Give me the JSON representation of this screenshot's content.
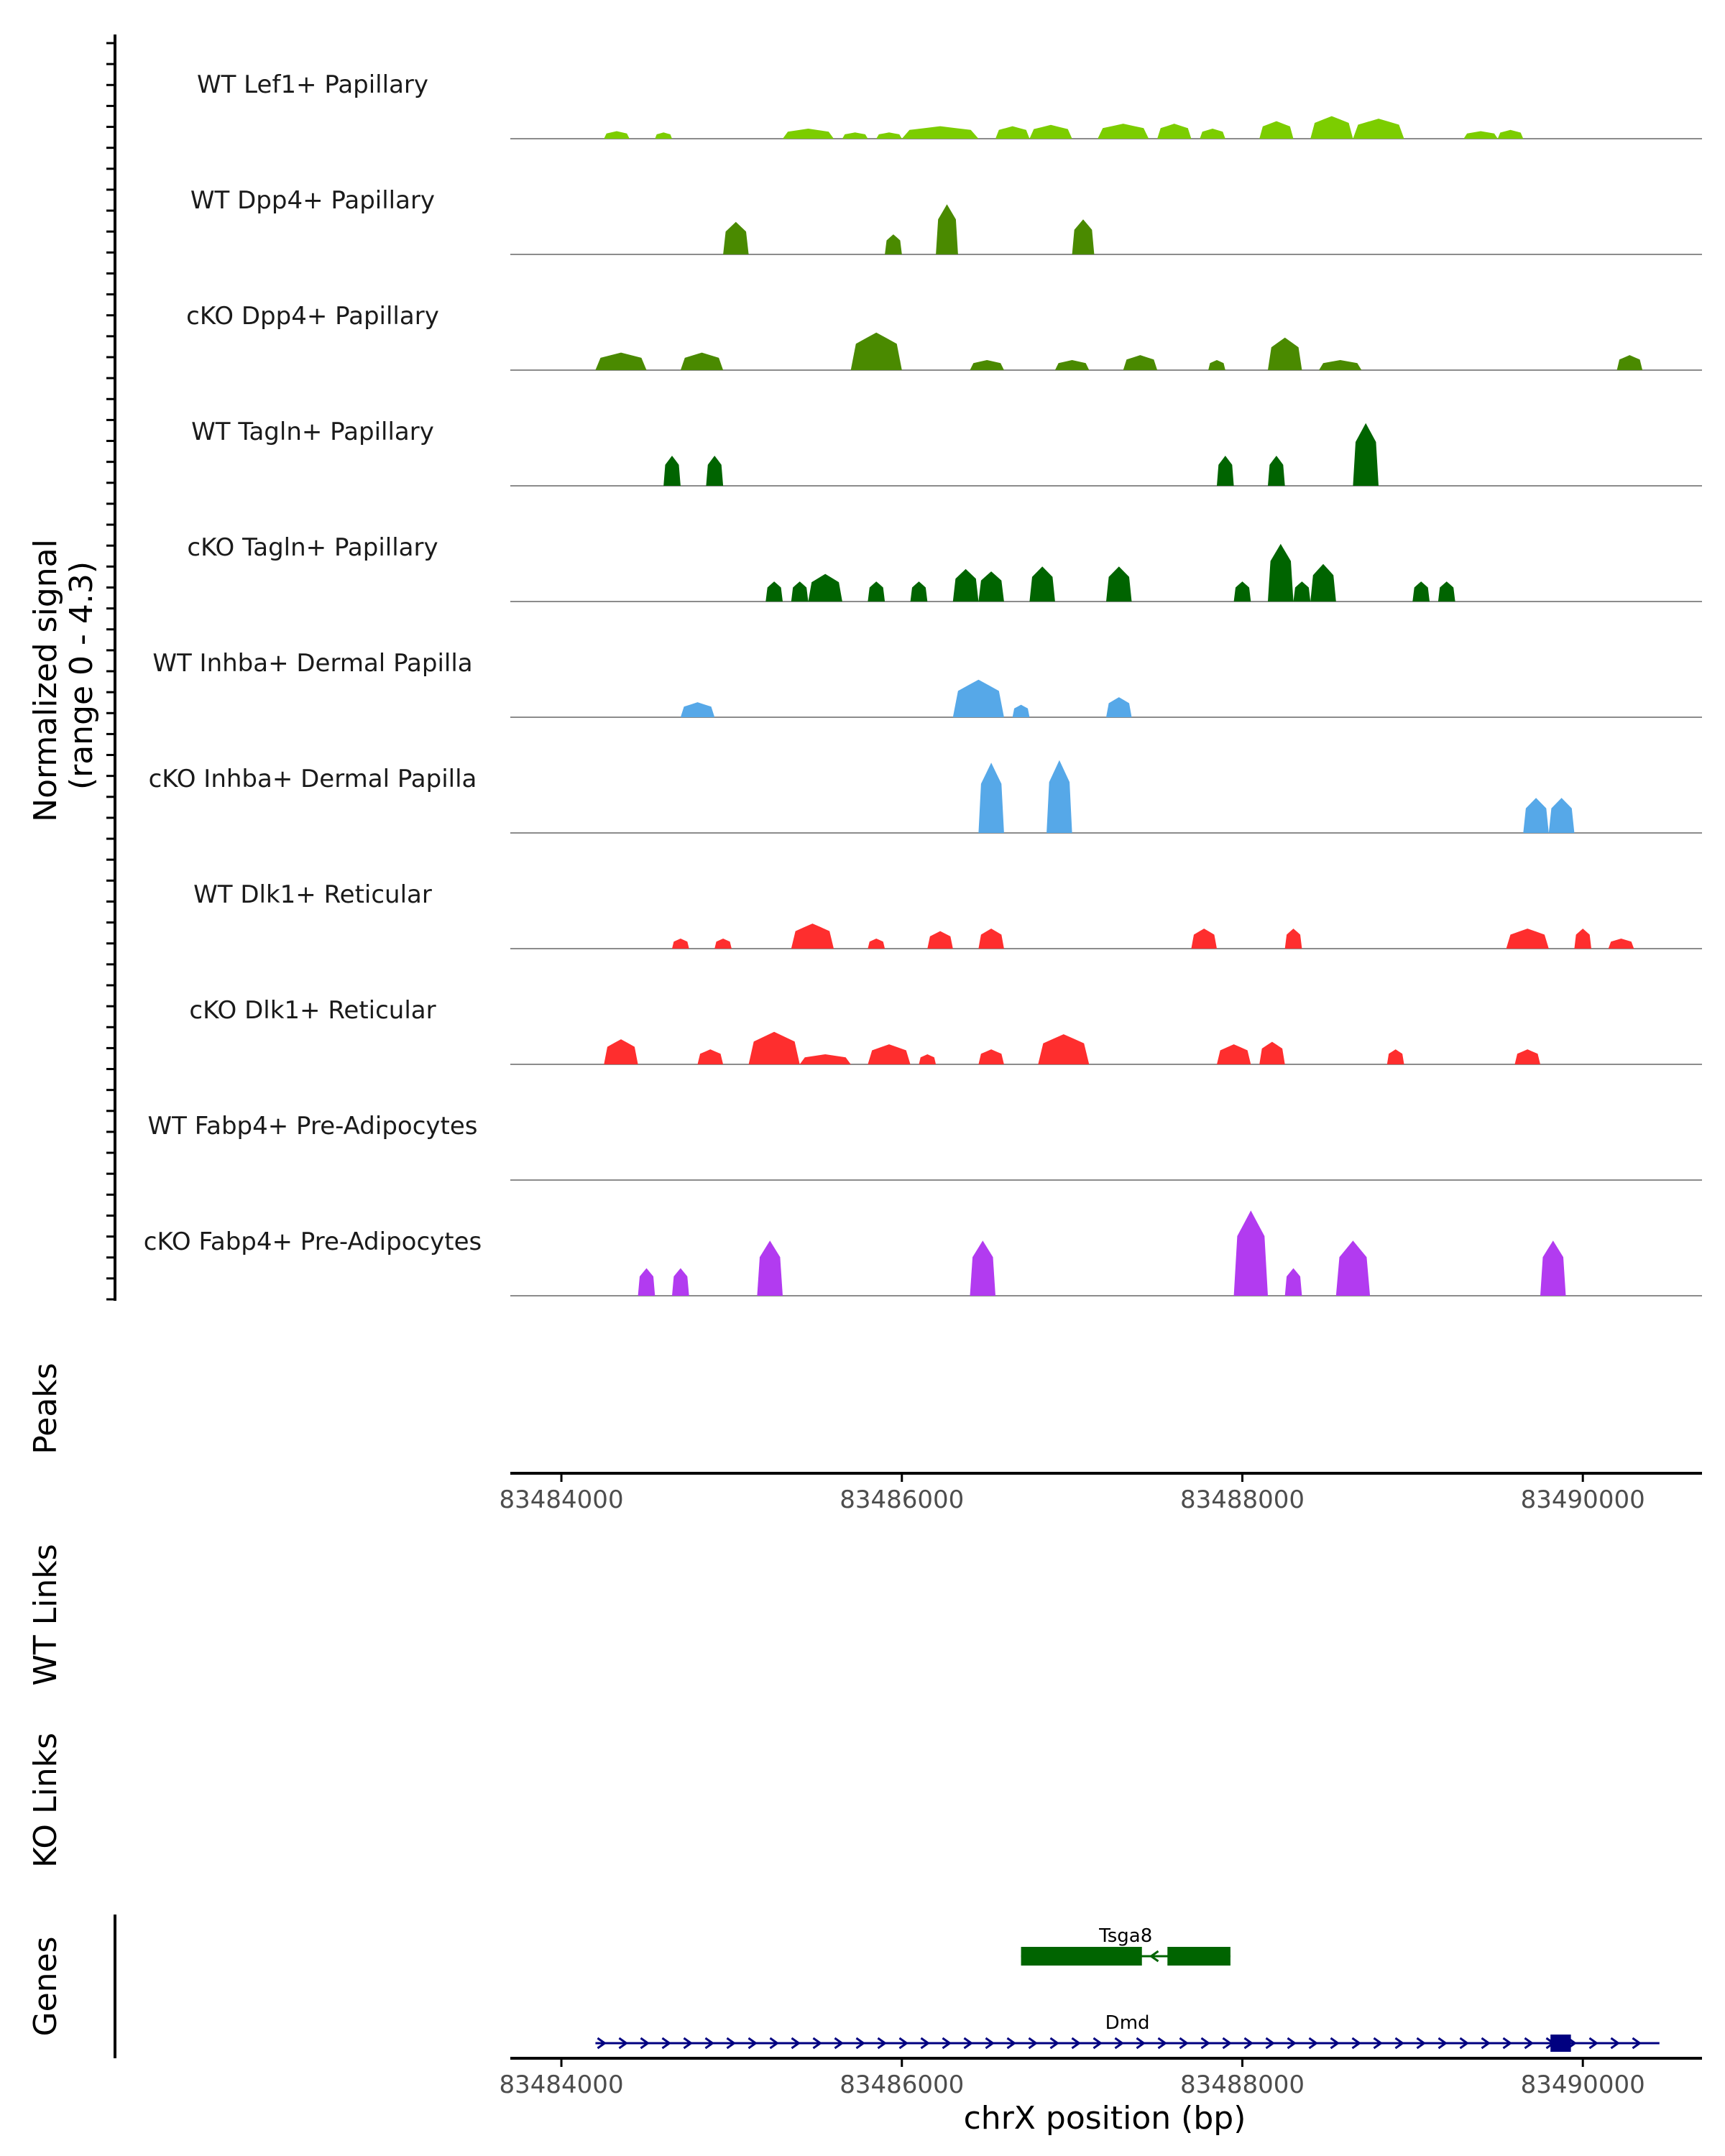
{
  "chart_data": {
    "type": "area",
    "title": "",
    "y_axis_title": [
      "Normalized signal",
      "(range 0 - 4.3)"
    ],
    "ylim": [
      0,
      4.3
    ],
    "x_axis_title": "chrX position (bp)",
    "xlim": [
      83483700,
      83490700
    ],
    "x_ticks": [
      83484000,
      83486000,
      83488000,
      83490000
    ],
    "x_tick_labels": [
      "83484000",
      "83486000",
      "83488000",
      "83490000"
    ],
    "tracks": [
      {
        "label": "WT Lef1+ Papillary",
        "color": "#7ccd00",
        "peaks": [
          [
            83484250,
            83484400,
            0.3
          ],
          [
            83484550,
            83484650,
            0.25
          ],
          [
            83485300,
            83485600,
            0.4
          ],
          [
            83485650,
            83485800,
            0.25
          ],
          [
            83485850,
            83486000,
            0.25
          ],
          [
            83486000,
            83486450,
            0.5
          ],
          [
            83486550,
            83486750,
            0.5
          ],
          [
            83486750,
            83487000,
            0.55
          ],
          [
            83487150,
            83487450,
            0.6
          ],
          [
            83487500,
            83487700,
            0.6
          ],
          [
            83487750,
            83487900,
            0.4
          ],
          [
            83488100,
            83488300,
            0.7
          ],
          [
            83488400,
            83488650,
            0.9
          ],
          [
            83488650,
            83488950,
            0.8
          ],
          [
            83489300,
            83489500,
            0.3
          ],
          [
            83489500,
            83489650,
            0.35
          ]
        ]
      },
      {
        "label": "WT Dpp4+ Papillary",
        "color": "#4a8a00",
        "peaks": [
          [
            83484950,
            83485100,
            1.3
          ],
          [
            83485900,
            83486000,
            0.8
          ],
          [
            83486200,
            83486330,
            2.0
          ],
          [
            83487000,
            83487130,
            1.4
          ]
        ]
      },
      {
        "label": "cKO Dpp4+ Papillary",
        "color": "#4a8a00",
        "peaks": [
          [
            83484200,
            83484500,
            0.7
          ],
          [
            83484700,
            83484950,
            0.7
          ],
          [
            83485700,
            83486000,
            1.5
          ],
          [
            83486400,
            83486600,
            0.4
          ],
          [
            83486900,
            83487100,
            0.4
          ],
          [
            83487300,
            83487500,
            0.6
          ],
          [
            83487800,
            83487900,
            0.4
          ],
          [
            83488150,
            83488350,
            1.3
          ],
          [
            83488450,
            83488700,
            0.4
          ],
          [
            83490200,
            83490350,
            0.6
          ]
        ]
      },
      {
        "label": "WT Tagln+ Papillary",
        "color": "#006400",
        "peaks": [
          [
            83484600,
            83484700,
            1.2
          ],
          [
            83484850,
            83484950,
            1.2
          ],
          [
            83487850,
            83487950,
            1.2
          ],
          [
            83488150,
            83488250,
            1.2
          ],
          [
            83488650,
            83488800,
            2.5
          ]
        ]
      },
      {
        "label": "cKO Tagln+ Papillary",
        "color": "#006400",
        "peaks": [
          [
            83485200,
            83485300,
            0.8
          ],
          [
            83485350,
            83485450,
            0.8
          ],
          [
            83485450,
            83485650,
            1.1
          ],
          [
            83485800,
            83485900,
            0.8
          ],
          [
            83486050,
            83486150,
            0.8
          ],
          [
            83486300,
            83486450,
            1.3
          ],
          [
            83486450,
            83486600,
            1.2
          ],
          [
            83486750,
            83486900,
            1.4
          ],
          [
            83487200,
            83487350,
            1.4
          ],
          [
            83487950,
            83488050,
            0.8
          ],
          [
            83488150,
            83488300,
            2.3
          ],
          [
            83488300,
            83488400,
            0.8
          ],
          [
            83488400,
            83488550,
            1.5
          ],
          [
            83489000,
            83489100,
            0.8
          ],
          [
            83489150,
            83489250,
            0.8
          ]
        ]
      },
      {
        "label": "WT Inhba+ Dermal Papilla",
        "color": "#56a8e8",
        "peaks": [
          [
            83484700,
            83484900,
            0.6
          ],
          [
            83486300,
            83486600,
            1.5
          ],
          [
            83486650,
            83486750,
            0.5
          ],
          [
            83487200,
            83487350,
            0.8
          ]
        ]
      },
      {
        "label": "cKO Inhba+ Dermal Papilla",
        "color": "#56a8e8",
        "peaks": [
          [
            83486450,
            83486600,
            2.8
          ],
          [
            83486850,
            83487000,
            2.9
          ],
          [
            83489650,
            83489800,
            1.4
          ],
          [
            83489800,
            83489950,
            1.4
          ]
        ]
      },
      {
        "label": "WT Dlk1+ Reticular",
        "color": "#fe2e2e",
        "peaks": [
          [
            83484650,
            83484750,
            0.4
          ],
          [
            83484900,
            83485000,
            0.4
          ],
          [
            83485350,
            83485600,
            1.0
          ],
          [
            83485800,
            83485900,
            0.4
          ],
          [
            83486150,
            83486300,
            0.7
          ],
          [
            83486450,
            83486600,
            0.8
          ],
          [
            83487700,
            83487850,
            0.8
          ],
          [
            83488250,
            83488350,
            0.8
          ],
          [
            83489550,
            83489800,
            0.8
          ],
          [
            83489950,
            83490050,
            0.8
          ],
          [
            83490150,
            83490300,
            0.4
          ]
        ]
      },
      {
        "label": "cKO Dlk1+ Reticular",
        "color": "#fe2e2e",
        "peaks": [
          [
            83484250,
            83484450,
            1.0
          ],
          [
            83484800,
            83484950,
            0.6
          ],
          [
            83485100,
            83485400,
            1.3
          ],
          [
            83485400,
            83485700,
            0.4
          ],
          [
            83485800,
            83486050,
            0.8
          ],
          [
            83486100,
            83486200,
            0.4
          ],
          [
            83486450,
            83486600,
            0.6
          ],
          [
            83486800,
            83487100,
            1.2
          ],
          [
            83487850,
            83488050,
            0.8
          ],
          [
            83488100,
            83488250,
            0.9
          ],
          [
            83488850,
            83488950,
            0.6
          ],
          [
            83489600,
            83489750,
            0.6
          ]
        ]
      },
      {
        "label": "WT Fabp4+ Pre-Adipocytes",
        "color": "#b23bf0",
        "peaks": []
      },
      {
        "label": "cKO Fabp4+ Pre-Adipocytes",
        "color": "#b23bf0",
        "peaks": [
          [
            83484450,
            83484550,
            1.1
          ],
          [
            83484650,
            83484750,
            1.1
          ],
          [
            83485150,
            83485300,
            2.2
          ],
          [
            83486400,
            83486550,
            2.2
          ],
          [
            83487950,
            83488150,
            3.4
          ],
          [
            83488250,
            83488350,
            1.1
          ],
          [
            83488550,
            83488750,
            2.2
          ],
          [
            83489750,
            83489900,
            2.2
          ]
        ]
      }
    ],
    "peaks_title": "Peaks",
    "links_titles": [
      "WT Links",
      "KO Links"
    ],
    "genes_title": "Genes",
    "genes": [
      {
        "name": "Tsga8",
        "start": 83486700,
        "end": 83487930,
        "strand": "-",
        "color": "#006400",
        "exons": [
          [
            83486700,
            83487410
          ],
          [
            83487560,
            83487930
          ]
        ]
      },
      {
        "name": "Dmd",
        "start": 83484200,
        "end": 83490450,
        "strand": "+",
        "color": "#000080",
        "exons": [
          [
            83489810,
            83489930
          ]
        ]
      }
    ]
  }
}
